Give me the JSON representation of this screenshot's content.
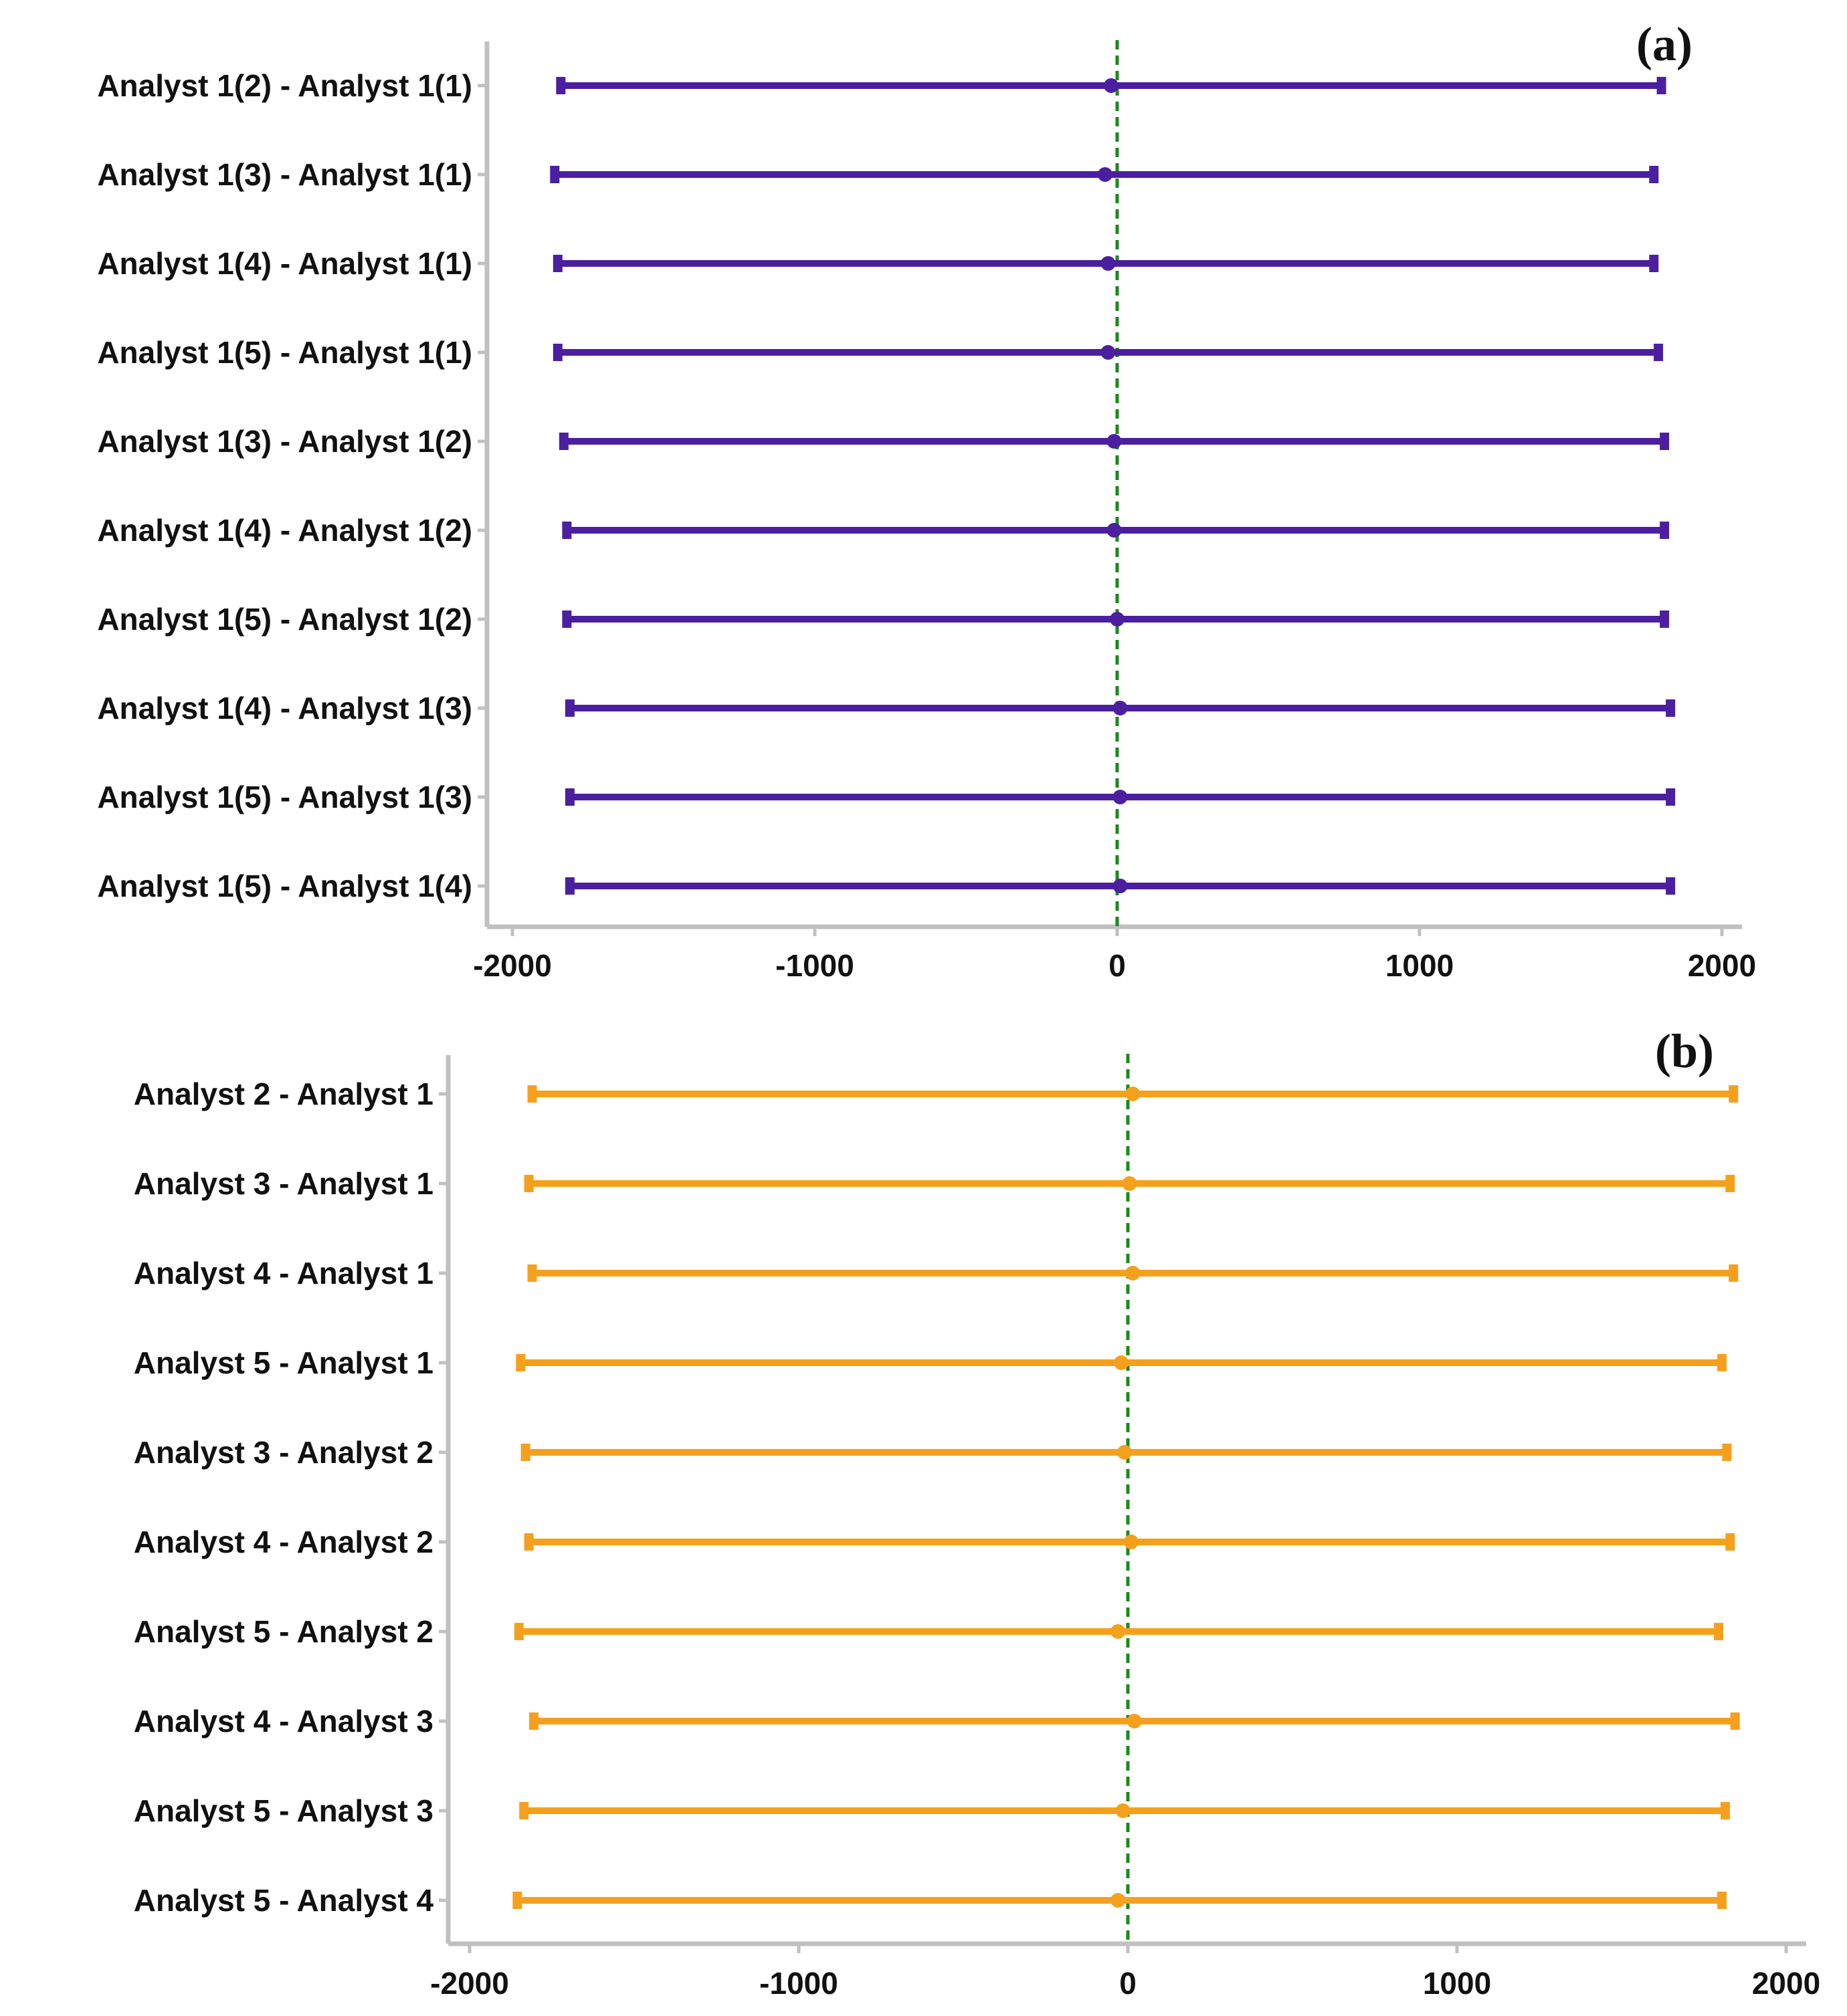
{
  "colors": {
    "panel_a_series": "#4b1fa0",
    "panel_b_series": "#f5a01d",
    "zero_line": "#1a8a1a",
    "axis": "#c0c0c0"
  },
  "chart_data": [
    {
      "type": "interval",
      "panel_label": "(a)",
      "xlim": [
        -2000,
        2000
      ],
      "xticks": [
        "-2000",
        "-1000",
        "0",
        "1000",
        "2000"
      ],
      "xtick_values": [
        -2000,
        -1000,
        0,
        1000,
        2000
      ],
      "reference_line": 0,
      "grid": false,
      "categories": [
        "Analyst 1(2) - Analyst 1(1)",
        "Analyst 1(3) - Analyst 1(1)",
        "Analyst 1(4) - Analyst 1(1)",
        "Analyst 1(5) - Analyst 1(1)",
        "Analyst 1(3) - Analyst 1(2)",
        "Analyst 1(4) - Analyst 1(2)",
        "Analyst 1(5) - Analyst 1(2)",
        "Analyst 1(4) - Analyst 1(3)",
        "Analyst 1(5) - Analyst 1(3)",
        "Analyst 1(5) - Analyst 1(4)"
      ],
      "estimate": [
        -20,
        -40,
        -30,
        -30,
        -10,
        -10,
        0,
        10,
        10,
        10
      ],
      "lower": [
        -1840,
        -1860,
        -1850,
        -1850,
        -1830,
        -1820,
        -1820,
        -1810,
        -1810,
        -1810
      ],
      "upper": [
        1800,
        1775,
        1775,
        1790,
        1810,
        1810,
        1810,
        1830,
        1830,
        1830
      ]
    },
    {
      "type": "interval",
      "panel_label": "(b)",
      "xlim": [
        -2000,
        2000
      ],
      "xticks": [
        "-2000",
        "-1000",
        "0",
        "1000",
        "2000"
      ],
      "xtick_values": [
        -2000,
        -1000,
        0,
        1000,
        2000
      ],
      "reference_line": 0,
      "grid": false,
      "categories": [
        "Analyst 2 - Analyst 1",
        "Analyst 3 - Analyst 1",
        "Analyst 4 - Analyst 1",
        "Analyst 5 - Analyst 1",
        "Analyst 3 - Analyst 2",
        "Analyst 4 - Analyst 2",
        "Analyst 5 - Analyst 2",
        "Analyst 4 - Analyst 3",
        "Analyst 5 - Analyst 3",
        "Analyst 5 - Analyst 4"
      ],
      "estimate": [
        15,
        5,
        15,
        -20,
        -10,
        10,
        -30,
        20,
        -15,
        -30
      ],
      "lower": [
        -1810,
        -1820,
        -1810,
        -1845,
        -1830,
        -1820,
        -1850,
        -1805,
        -1835,
        -1855
      ],
      "upper": [
        1840,
        1830,
        1840,
        1805,
        1820,
        1830,
        1795,
        1845,
        1815,
        1805
      ]
    }
  ]
}
